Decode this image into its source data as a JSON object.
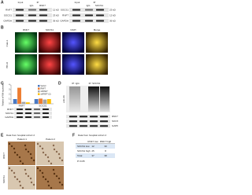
{
  "panels": {
    "a": {
      "label": "A",
      "input": "Input",
      "ip": "IP",
      "lanes": [
        "IgG",
        "RNF7"
      ],
      "lanes2": [
        "IgG",
        "SOCS1"
      ],
      "blots": [
        "RNF7",
        "SOCS1",
        "GAPDH"
      ],
      "blots2": [
        "SOCS1",
        "RNF7",
        "GAPDH"
      ],
      "sizes": [
        "12 kD",
        "23 kD",
        "36 kD"
      ],
      "sizes2": [
        "23 kD",
        "12 kD",
        "36 kD"
      ]
    },
    "b": {
      "label": "B",
      "cols": [
        "RNF7",
        "SOCS1",
        "DAPI",
        "Merge"
      ],
      "rows": [
        "Caki-1",
        "786-O"
      ]
    },
    "c": {
      "label": "C",
      "ylabel": "Relative mRNA expression",
      "categories": [
        "RNF7",
        "SOCS1"
      ],
      "ylim": [
        0,
        4
      ],
      "yticks": [
        0,
        1,
        2,
        3,
        4
      ],
      "series": [
        {
          "name": "Vector",
          "color": "#4a78c2",
          "values": [
            1,
            1
          ]
        },
        {
          "name": "RNF7",
          "color": "#ed7d31",
          "values": [
            3.4,
            1.1
          ]
        },
        {
          "name": "shRNF7",
          "color": "#a5a5a5",
          "values": [
            0.4,
            0.9
          ]
        },
        {
          "name": "shRNF7 (2)",
          "color": "#ffc000",
          "values": [
            0.3,
            1.0
          ]
        }
      ],
      "blots": [
        "RNF7",
        "SOCS1",
        "GAPDH"
      ]
    },
    "d": {
      "label": "D",
      "ip": [
        "IP: IgG",
        "IP: SOCS1"
      ],
      "smear": "anti-Ub",
      "blots": [
        "RNF7",
        "SOCS1",
        "GAPDH"
      ]
    },
    "e": {
      "label": "E",
      "title": "Data from hospital cohort 2",
      "patients": [
        "Patient 1",
        "Patient 2"
      ],
      "rows": [
        "RNF7",
        "SOCS1"
      ]
    },
    "f": {
      "label": "F",
      "title": "Data from hospital cohort 2",
      "header": [
        "",
        "RNF7 low",
        "RNF7 high"
      ],
      "rows": [
        [
          "SOCS1 low",
          "12",
          "30"
        ],
        [
          "SOCS1 high",
          "25",
          "8"
        ],
        [
          "Total",
          "37",
          "38"
        ]
      ],
      "note": "P<0.05"
    }
  }
}
